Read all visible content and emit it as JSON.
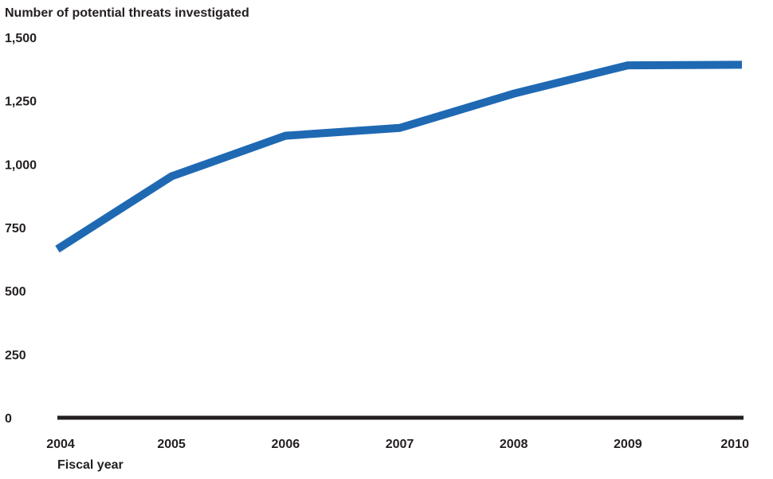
{
  "chart_data": {
    "type": "line",
    "title": "",
    "ylabel": "Number of potential threats investigated",
    "xlabel": "Fiscal year",
    "x": [
      "2004",
      "2005",
      "2006",
      "2007",
      "2008",
      "2009",
      "2010"
    ],
    "series": [
      {
        "values": [
          665,
          952,
          1112,
          1143,
          1278,
          1390,
          1392
        ]
      }
    ],
    "ylim": [
      0,
      1500
    ],
    "yticks": [
      0,
      250,
      500,
      750,
      1000,
      1250,
      1500
    ],
    "ytick_labels": [
      "0",
      "250",
      "500",
      "750",
      "1,000",
      "1,250",
      "1,500"
    ],
    "grid": false,
    "legend": "none",
    "colors": {
      "line": "#1f69b3",
      "axis": "#231f20",
      "text": "#231f20"
    }
  }
}
